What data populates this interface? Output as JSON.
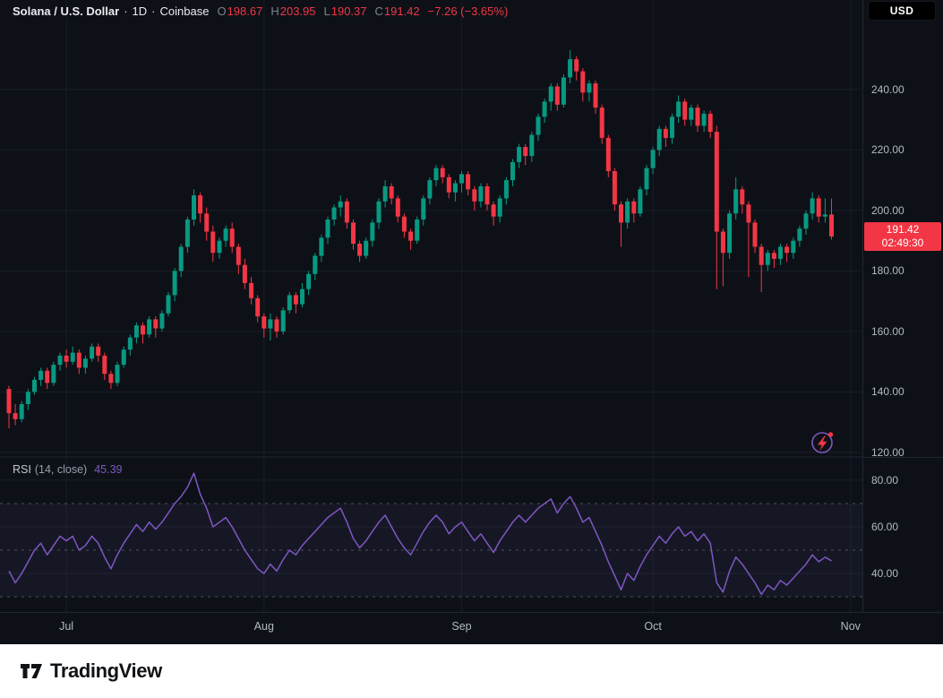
{
  "header": {
    "symbol": "Solana / U.S. Dollar",
    "separator": "·",
    "interval": "1D",
    "exchange": "Coinbase",
    "ohlc": {
      "o_label": "O",
      "o": "198.67",
      "h_label": "H",
      "h": "203.95",
      "l_label": "L",
      "l": "190.37",
      "c_label": "C",
      "c": "191.42",
      "change": "−7.26 (−3.65%)"
    },
    "currency_button": "USD"
  },
  "price_scale": {
    "labels": [
      "240.00",
      "220.00",
      "200.00",
      "180.00",
      "160.00",
      "140.00",
      "120.00"
    ],
    "values": [
      240,
      220,
      200,
      180,
      160,
      140,
      120
    ],
    "last_price": "191.42",
    "countdown": "02:49:30"
  },
  "rsi_pane": {
    "title": "RSI",
    "params": "(14, close)",
    "value": "45.39",
    "scale_labels": [
      "80.00",
      "60.00",
      "40.00"
    ],
    "scale_values": [
      80,
      60,
      40
    ]
  },
  "time_axis": {
    "labels": [
      "Jul",
      "Aug",
      "Sep",
      "Oct",
      "Nov"
    ],
    "indices": [
      9,
      40,
      71,
      101,
      132
    ]
  },
  "footer": {
    "brand": "TradingView"
  },
  "colors": {
    "bg": "#0d1117",
    "up": "#089981",
    "down": "#f23645",
    "rsi": "#7e57c2",
    "grid": "rgba(160,170,200,0.08)",
    "separator": "#1e2534",
    "rsi_band": "rgba(126,87,194,0.09)",
    "rsi_band_line": "rgba(128,132,144,0.55)",
    "tag_bg": "#f23645"
  },
  "chart_data": {
    "type": "candlestick",
    "title": "Solana / U.S. Dollar · 1D · Coinbase",
    "ylabel": "Price (USD)",
    "price_axis_ticks": [
      240,
      220,
      200,
      180,
      160,
      140,
      120
    ],
    "price_range_visible": [
      119,
      261
    ],
    "x_ticks": {
      "labels": [
        "Jul",
        "Aug",
        "Sep",
        "Oct",
        "Nov"
      ],
      "candle_indices": [
        9,
        40,
        71,
        101,
        132
      ]
    },
    "last_close": 191.42,
    "candles": [
      [
        141,
        142,
        128,
        133
      ],
      [
        133,
        136,
        129,
        131
      ],
      [
        131,
        137,
        130,
        136
      ],
      [
        136,
        141,
        134,
        140
      ],
      [
        140,
        145,
        139,
        144
      ],
      [
        144,
        148,
        142,
        147
      ],
      [
        147,
        148,
        141,
        143
      ],
      [
        143,
        150,
        142,
        149
      ],
      [
        149,
        153,
        147,
        152
      ],
      [
        152,
        154,
        148,
        150
      ],
      [
        150,
        155,
        149,
        153
      ],
      [
        153,
        154,
        146,
        148
      ],
      [
        148,
        152,
        146,
        151
      ],
      [
        151,
        156,
        150,
        155
      ],
      [
        155,
        156,
        150,
        152
      ],
      [
        152,
        153,
        144,
        146
      ],
      [
        146,
        147,
        141,
        143
      ],
      [
        143,
        150,
        142,
        149
      ],
      [
        149,
        155,
        148,
        154
      ],
      [
        154,
        159,
        152,
        158
      ],
      [
        158,
        163,
        156,
        162
      ],
      [
        162,
        163,
        156,
        159
      ],
      [
        159,
        165,
        158,
        164
      ],
      [
        164,
        165,
        158,
        161
      ],
      [
        161,
        167,
        160,
        166
      ],
      [
        166,
        173,
        165,
        172
      ],
      [
        172,
        181,
        170,
        180
      ],
      [
        180,
        189,
        178,
        188
      ],
      [
        188,
        198,
        186,
        197
      ],
      [
        197,
        207,
        195,
        205
      ],
      [
        205,
        206,
        196,
        199
      ],
      [
        199,
        201,
        190,
        193
      ],
      [
        193,
        195,
        183,
        186
      ],
      [
        186,
        191,
        184,
        190
      ],
      [
        190,
        195,
        188,
        194
      ],
      [
        194,
        196,
        186,
        188
      ],
      [
        188,
        189,
        179,
        182
      ],
      [
        182,
        184,
        174,
        176
      ],
      [
        176,
        178,
        169,
        171
      ],
      [
        171,
        172,
        163,
        165
      ],
      [
        165,
        166,
        158,
        161
      ],
      [
        161,
        166,
        157,
        164
      ],
      [
        164,
        165,
        158,
        160
      ],
      [
        160,
        168,
        159,
        167
      ],
      [
        167,
        173,
        166,
        172
      ],
      [
        172,
        173,
        166,
        169
      ],
      [
        169,
        176,
        168,
        174
      ],
      [
        174,
        180,
        172,
        179
      ],
      [
        179,
        186,
        177,
        185
      ],
      [
        185,
        192,
        183,
        191
      ],
      [
        191,
        198,
        189,
        197
      ],
      [
        197,
        202,
        195,
        201
      ],
      [
        201,
        205,
        198,
        203
      ],
      [
        203,
        204,
        194,
        196
      ],
      [
        196,
        197,
        187,
        189
      ],
      [
        189,
        190,
        183,
        185
      ],
      [
        185,
        191,
        184,
        190
      ],
      [
        190,
        197,
        188,
        196
      ],
      [
        196,
        204,
        194,
        203
      ],
      [
        203,
        210,
        201,
        208
      ],
      [
        208,
        209,
        202,
        204
      ],
      [
        204,
        205,
        196,
        198
      ],
      [
        198,
        199,
        191,
        193
      ],
      [
        193,
        194,
        187,
        190
      ],
      [
        190,
        198,
        189,
        197
      ],
      [
        197,
        205,
        195,
        204
      ],
      [
        204,
        211,
        202,
        210
      ],
      [
        210,
        215,
        208,
        214
      ],
      [
        214,
        215,
        209,
        211
      ],
      [
        211,
        212,
        204,
        206
      ],
      [
        206,
        210,
        203,
        209
      ],
      [
        209,
        213,
        206,
        212
      ],
      [
        212,
        213,
        205,
        207
      ],
      [
        207,
        208,
        200,
        203
      ],
      [
        203,
        209,
        201,
        208
      ],
      [
        208,
        209,
        200,
        202
      ],
      [
        202,
        203,
        195,
        198
      ],
      [
        198,
        205,
        196,
        204
      ],
      [
        204,
        211,
        202,
        210
      ],
      [
        210,
        217,
        208,
        216
      ],
      [
        216,
        222,
        214,
        221
      ],
      [
        221,
        222,
        215,
        218
      ],
      [
        218,
        226,
        216,
        225
      ],
      [
        225,
        232,
        223,
        231
      ],
      [
        231,
        237,
        229,
        236
      ],
      [
        236,
        242,
        233,
        241
      ],
      [
        241,
        242,
        233,
        235
      ],
      [
        235,
        245,
        234,
        244
      ],
      [
        244,
        253,
        242,
        250
      ],
      [
        250,
        251,
        243,
        246
      ],
      [
        246,
        247,
        236,
        239
      ],
      [
        239,
        243,
        236,
        242
      ],
      [
        242,
        243,
        232,
        234
      ],
      [
        234,
        235,
        222,
        224
      ],
      [
        224,
        225,
        211,
        213
      ],
      [
        213,
        214,
        200,
        202
      ],
      [
        202,
        203,
        188,
        196
      ],
      [
        196,
        204,
        194,
        203
      ],
      [
        203,
        204,
        196,
        199
      ],
      [
        199,
        208,
        198,
        207
      ],
      [
        207,
        215,
        205,
        214
      ],
      [
        214,
        221,
        212,
        220
      ],
      [
        220,
        228,
        218,
        227
      ],
      [
        227,
        228,
        221,
        224
      ],
      [
        224,
        232,
        222,
        231
      ],
      [
        231,
        238,
        229,
        236
      ],
      [
        236,
        237,
        228,
        230
      ],
      [
        230,
        235,
        228,
        234
      ],
      [
        234,
        235,
        226,
        228
      ],
      [
        228,
        233,
        226,
        232
      ],
      [
        232,
        233,
        224,
        226
      ],
      [
        226,
        228,
        174,
        193
      ],
      [
        193,
        194,
        175,
        186
      ],
      [
        186,
        200,
        184,
        199
      ],
      [
        199,
        211,
        197,
        207
      ],
      [
        207,
        208,
        199,
        202
      ],
      [
        202,
        203,
        178,
        196
      ],
      [
        196,
        197,
        186,
        188
      ],
      [
        188,
        189,
        173,
        182
      ],
      [
        182,
        187,
        180,
        186
      ],
      [
        186,
        187,
        181,
        184
      ],
      [
        184,
        189,
        182,
        188
      ],
      [
        188,
        189,
        183,
        186
      ],
      [
        186,
        191,
        184,
        190
      ],
      [
        190,
        195,
        188,
        194
      ],
      [
        194,
        200,
        192,
        199
      ],
      [
        199,
        206,
        197,
        204
      ],
      [
        204,
        205,
        196,
        198
      ],
      [
        198,
        204,
        196,
        198.68
      ],
      [
        198.67,
        203.95,
        190.37,
        191.42
      ]
    ],
    "rsi": {
      "period_label": "(14, close)",
      "current": 45.39,
      "axis_ticks": [
        80,
        60,
        40
      ],
      "band_levels": [
        70,
        50,
        30
      ],
      "values": [
        41,
        36,
        40,
        45,
        50,
        53,
        48,
        52,
        56,
        54,
        56,
        50,
        52,
        56,
        53,
        47,
        42,
        48,
        53,
        57,
        61,
        58,
        62,
        59,
        62,
        66,
        70,
        73,
        77,
        83,
        74,
        68,
        60,
        62,
        64,
        60,
        55,
        50,
        46,
        42,
        40,
        44,
        41,
        46,
        50,
        48,
        52,
        55,
        58,
        61,
        64,
        66,
        68,
        62,
        55,
        51,
        54,
        58,
        62,
        65,
        60,
        55,
        51,
        48,
        53,
        58,
        62,
        65,
        62,
        57,
        60,
        62,
        58,
        54,
        57,
        53,
        49,
        54,
        58,
        62,
        65,
        62,
        65,
        68,
        70,
        72,
        66,
        70,
        73,
        68,
        62,
        64,
        58,
        52,
        45,
        39,
        33,
        40,
        37,
        43,
        48,
        52,
        56,
        53,
        57,
        60,
        56,
        58,
        54,
        57,
        53,
        36,
        32,
        41,
        47,
        44,
        40,
        36,
        31,
        35,
        33,
        37,
        35,
        38,
        41,
        44,
        48,
        45,
        47,
        45.39
      ]
    }
  }
}
